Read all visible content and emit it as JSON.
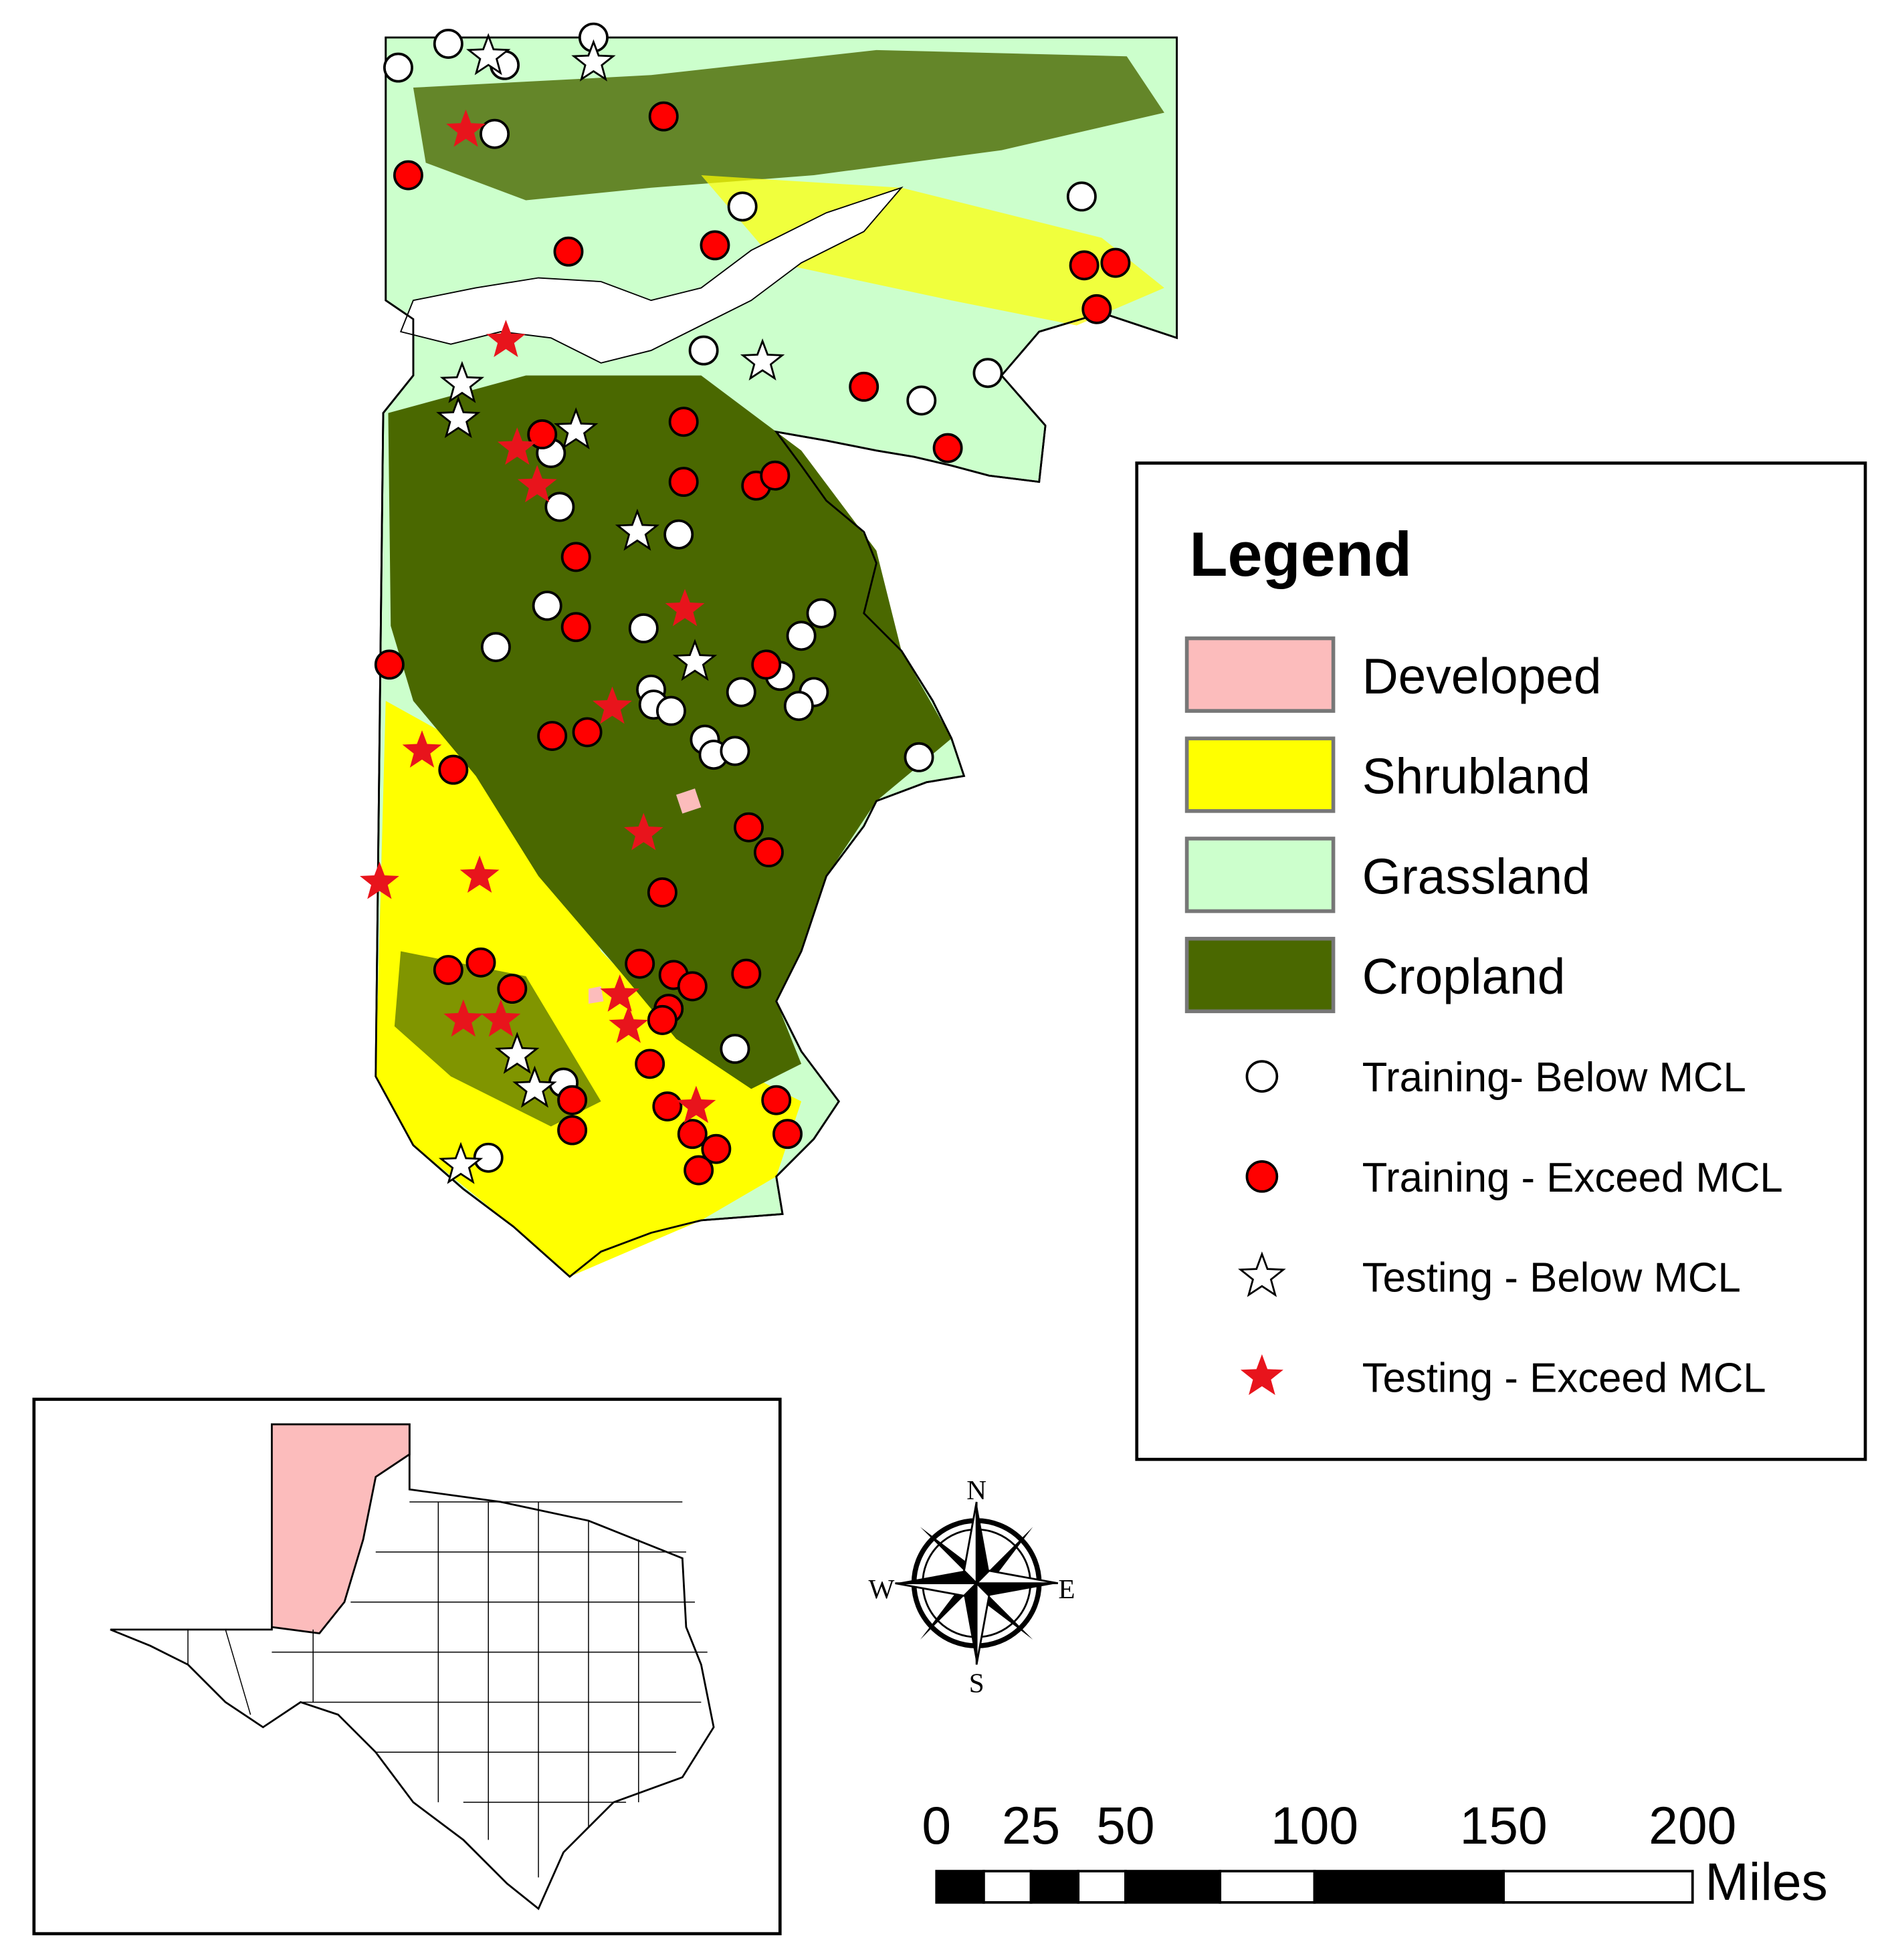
{
  "legend": {
    "title": "Legend",
    "land_cover": [
      {
        "label": "Developed",
        "color": "#fcbcbc"
      },
      {
        "label": "Shrubland",
        "color": "#ffff00"
      },
      {
        "label": "Grassland",
        "color": "#ccffcc"
      },
      {
        "label": "Cropland",
        "color": "#4a6800"
      }
    ],
    "samples": [
      {
        "label": "Training- Below MCL",
        "shape": "circle",
        "color": "#ffffff"
      },
      {
        "label": "Training - Exceed MCL",
        "shape": "circle",
        "color": "#ff0000"
      },
      {
        "label": "Testing - Below MCL",
        "shape": "star",
        "color": "#ffffff"
      },
      {
        "label": "Testing - Exceed MCL",
        "shape": "star",
        "color": "#e8141c"
      }
    ]
  },
  "compass": {
    "north": "N",
    "east": "E",
    "south": "S",
    "west": "W"
  },
  "scale_bar": {
    "ticks": [
      0,
      25,
      50,
      100,
      150,
      200
    ],
    "unit": "Miles"
  }
}
